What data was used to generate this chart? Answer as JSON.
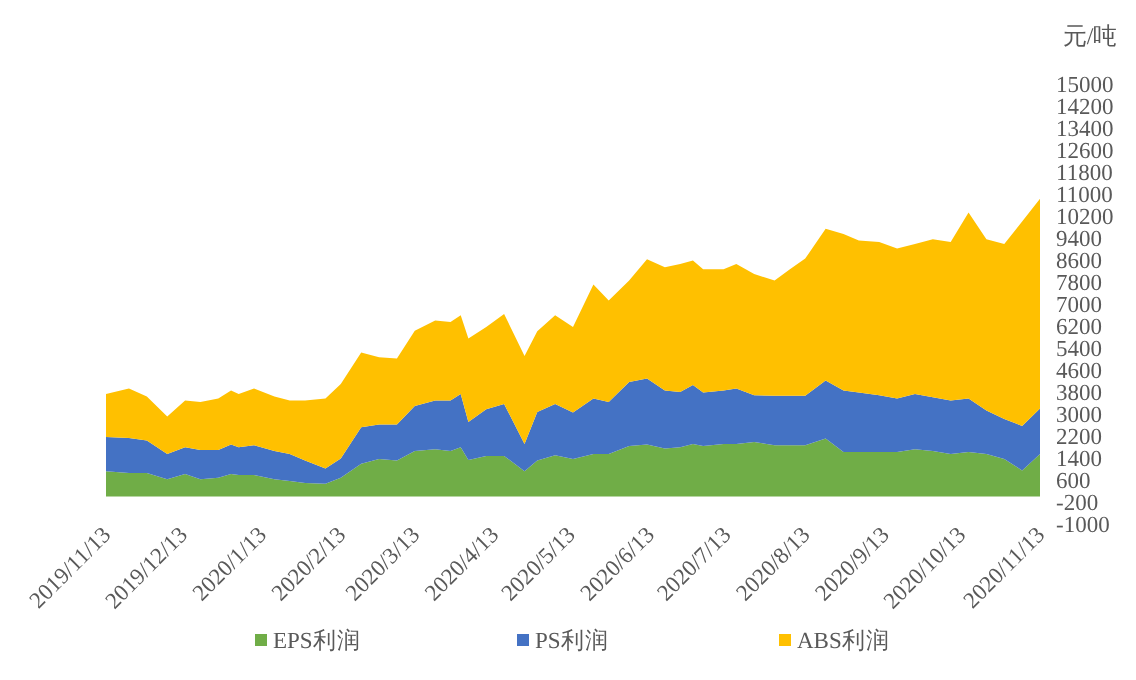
{
  "chart_data": {
    "type": "area",
    "stacked": true,
    "ylabel": "元/吨",
    "legend": "bottom",
    "xlim": [
      "2019-11-13",
      "2020-11-13"
    ],
    "xticks": [
      {
        "value": "2019-11-13",
        "label": "2019/11/13"
      },
      {
        "value": "2019-12-13",
        "label": "2019/12/13"
      },
      {
        "value": "2020-01-13",
        "label": "2020/1/13"
      },
      {
        "value": "2020-02-13",
        "label": "2020/2/13"
      },
      {
        "value": "2020-03-13",
        "label": "2020/3/13"
      },
      {
        "value": "2020-04-13",
        "label": "2020/4/13"
      },
      {
        "value": "2020-05-13",
        "label": "2020/5/13"
      },
      {
        "value": "2020-06-13",
        "label": "2020/6/13"
      },
      {
        "value": "2020-07-13",
        "label": "2020/7/13"
      },
      {
        "value": "2020-08-13",
        "label": "2020/8/13"
      },
      {
        "value": "2020-09-13",
        "label": "2020/9/13"
      },
      {
        "value": "2020-10-13",
        "label": "2020/10/13"
      },
      {
        "value": "2020-11-13",
        "label": "2020/11/13"
      }
    ],
    "ylim": [
      -1000,
      15000
    ],
    "yticks": [
      -1000,
      -200,
      600,
      1400,
      2200,
      3000,
      3800,
      4600,
      5400,
      6200,
      7000,
      7800,
      8600,
      9400,
      10200,
      11000,
      11800,
      12600,
      13400,
      14200,
      15000
    ],
    "x": [
      "2019-11-13",
      "2019-11-22",
      "2019-11-29",
      "2019-12-07",
      "2019-12-14",
      "2019-12-20",
      "2019-12-27",
      "2020-01-01",
      "2020-01-04",
      "2020-01-10",
      "2020-01-18",
      "2020-01-24",
      "2020-01-30",
      "2020-02-07",
      "2020-02-13",
      "2020-02-21",
      "2020-02-28",
      "2020-03-06",
      "2020-03-13",
      "2020-03-21",
      "2020-03-27",
      "2020-03-31",
      "2020-04-03",
      "2020-04-10",
      "2020-04-17",
      "2020-04-25",
      "2020-04-30",
      "2020-05-07",
      "2020-05-14",
      "2020-05-22",
      "2020-05-28",
      "2020-06-05",
      "2020-06-12",
      "2020-06-19",
      "2020-06-25",
      "2020-06-30",
      "2020-07-04",
      "2020-07-12",
      "2020-07-17",
      "2020-07-24",
      "2020-08-01",
      "2020-08-07",
      "2020-08-13",
      "2020-08-21",
      "2020-08-28",
      "2020-09-03",
      "2020-09-11",
      "2020-09-18",
      "2020-09-25",
      "2020-10-02",
      "2020-10-09",
      "2020-10-16",
      "2020-10-23",
      "2020-10-30",
      "2020-11-06",
      "2020-11-13"
    ],
    "series": [
      {
        "name": "EPS利润",
        "color": "#70ad47",
        "values": [
          920,
          850,
          850,
          630,
          820,
          630,
          680,
          820,
          780,
          780,
          630,
          560,
          490,
          460,
          680,
          1190,
          1360,
          1310,
          1650,
          1720,
          1650,
          1795,
          1330,
          1475,
          1475,
          920,
          1310,
          1500,
          1360,
          1550,
          1550,
          1840,
          1890,
          1745,
          1795,
          1910,
          1840,
          1910,
          1910,
          1985,
          1865,
          1865,
          1865,
          2110,
          1620,
          1620,
          1620,
          1620,
          1720,
          1650,
          1550,
          1620,
          1550,
          1360,
          945,
          1550
        ]
      },
      {
        "name": "PS利润",
        "color": "#4472c4",
        "values": [
          1240,
          1280,
          1185,
          920,
          970,
          1065,
          1015,
          1070,
          1010,
          1085,
          1020,
          990,
          820,
          560,
          700,
          1330,
          1260,
          1310,
          1645,
          1770,
          1840,
          1935,
          1380,
          1700,
          1890,
          990,
          1765,
          1865,
          1695,
          2010,
          1890,
          2325,
          2400,
          2105,
          2005,
          2140,
          1940,
          1940,
          2015,
          1700,
          1795,
          1795,
          1795,
          2105,
          2230,
          2160,
          2065,
          1940,
          2010,
          1960,
          1940,
          1940,
          1575,
          1455,
          1620,
          1650
        ]
      },
      {
        "name": "ABS利润",
        "color": "#ffc000",
        "values": [
          1570,
          1795,
          1600,
          1360,
          1700,
          1745,
          1865,
          1960,
          1940,
          2060,
          1985,
          1940,
          2180,
          2540,
          2710,
          2715,
          2445,
          2395,
          2735,
          2910,
          2860,
          2860,
          3035,
          2985,
          3275,
          3200,
          2935,
          3225,
          3105,
          4150,
          3685,
          3685,
          4340,
          4490,
          4655,
          4530,
          4485,
          4415,
          4530,
          4405,
          4190,
          4605,
          4990,
          5525,
          5695,
          5525,
          5570,
          5455,
          5450,
          5745,
          5765,
          6765,
          6230,
          6365,
          7435,
          7630
        ]
      }
    ]
  }
}
